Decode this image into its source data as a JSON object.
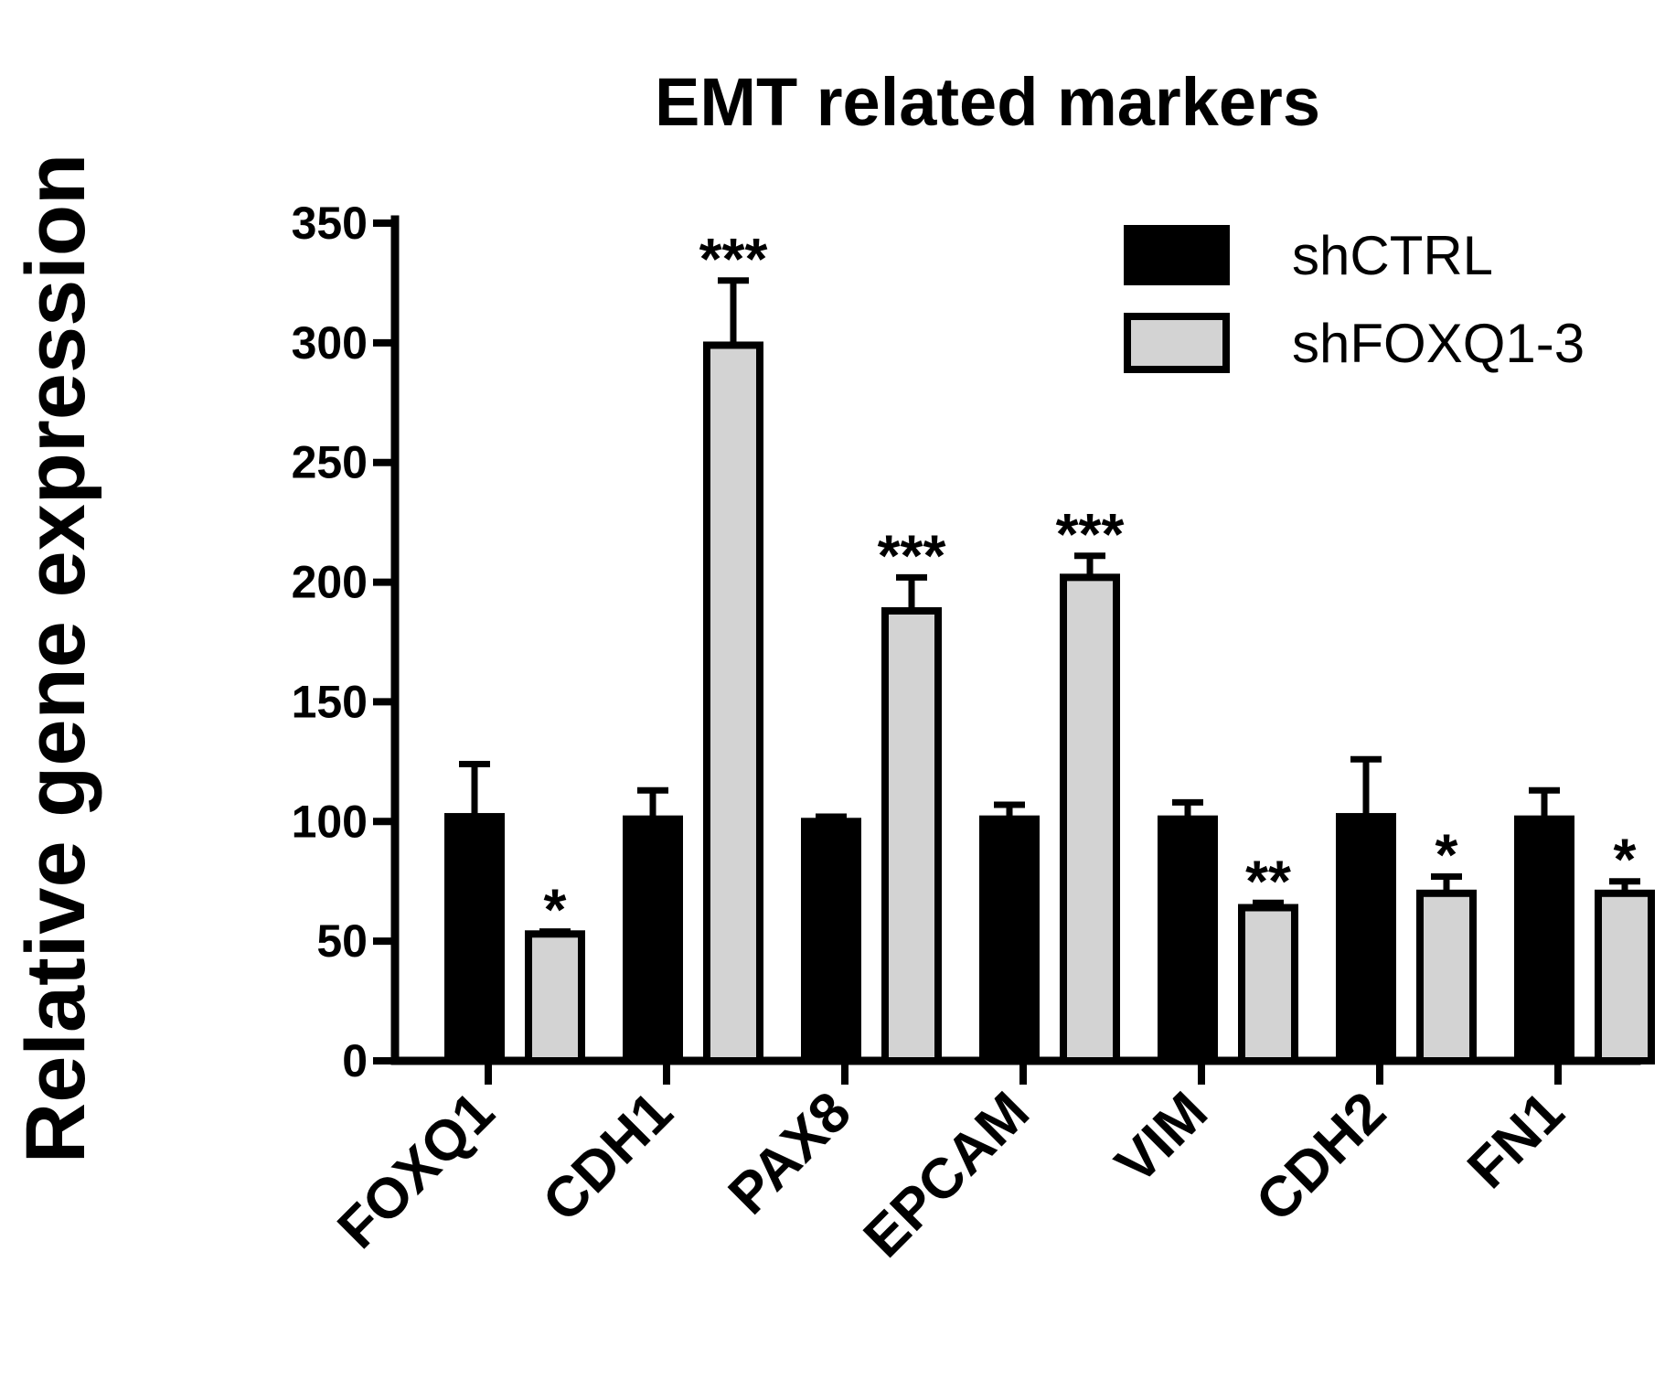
{
  "chart_data": {
    "type": "bar",
    "title": "EMT related markers",
    "xlabel": "",
    "ylabel": "Relative gene expression",
    "ylim": [
      0,
      350
    ],
    "yticks": [
      0,
      50,
      100,
      150,
      200,
      250,
      300,
      350
    ],
    "categories": [
      "FOXQ1",
      "CDH1",
      "PAX8",
      "EPCAM",
      "VIM",
      "CDH2",
      "FN1"
    ],
    "series": [
      {
        "name": "shCTRL",
        "color": "#000000",
        "values": [
          102,
          101,
          100,
          101,
          101,
          102,
          101
        ],
        "errors": [
          22,
          12,
          2,
          6,
          7,
          24,
          12
        ]
      },
      {
        "name": "shFOXQ1-3",
        "color": "#d3d3d3",
        "values": [
          53,
          299,
          188,
          202,
          64,
          70,
          70
        ],
        "errors": [
          1,
          27,
          14,
          9,
          2,
          7,
          5
        ]
      }
    ],
    "significance": [
      "*",
      "***",
      "***",
      "***",
      "**",
      "*",
      "*"
    ],
    "grid": false,
    "legend_position": "top-right"
  }
}
